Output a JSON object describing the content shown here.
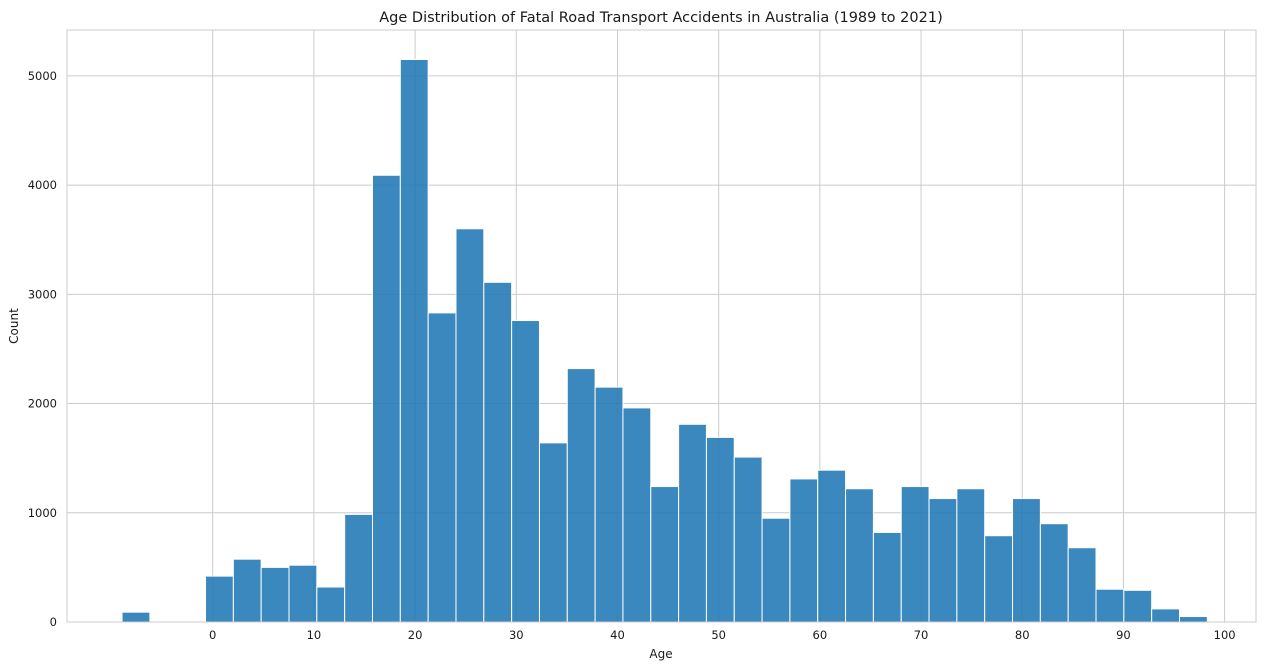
{
  "chart_data": {
    "type": "bar",
    "title": "Age Distribution of Fatal Road Transport Accidents in Australia (1989 to 2021)",
    "xlabel": "Age",
    "ylabel": "Count",
    "xlim": [
      -14.4,
      103.1
    ],
    "ylim": [
      0,
      5420
    ],
    "xticks": [
      0,
      10,
      20,
      30,
      40,
      50,
      60,
      70,
      80,
      90,
      100
    ],
    "yticks": [
      0,
      1000,
      2000,
      3000,
      4000,
      5000
    ],
    "grid": true,
    "bin_width": 2.75,
    "bin_start": -8.96,
    "values": [
      90,
      0,
      0,
      420,
      575,
      500,
      520,
      320,
      985,
      4090,
      5150,
      2830,
      3600,
      3110,
      2760,
      1640,
      2320,
      2150,
      1960,
      1240,
      1810,
      1690,
      1510,
      950,
      1310,
      1390,
      1220,
      820,
      1240,
      1130,
      1220,
      790,
      1130,
      900,
      680,
      300,
      290,
      120,
      50,
      0
    ]
  }
}
